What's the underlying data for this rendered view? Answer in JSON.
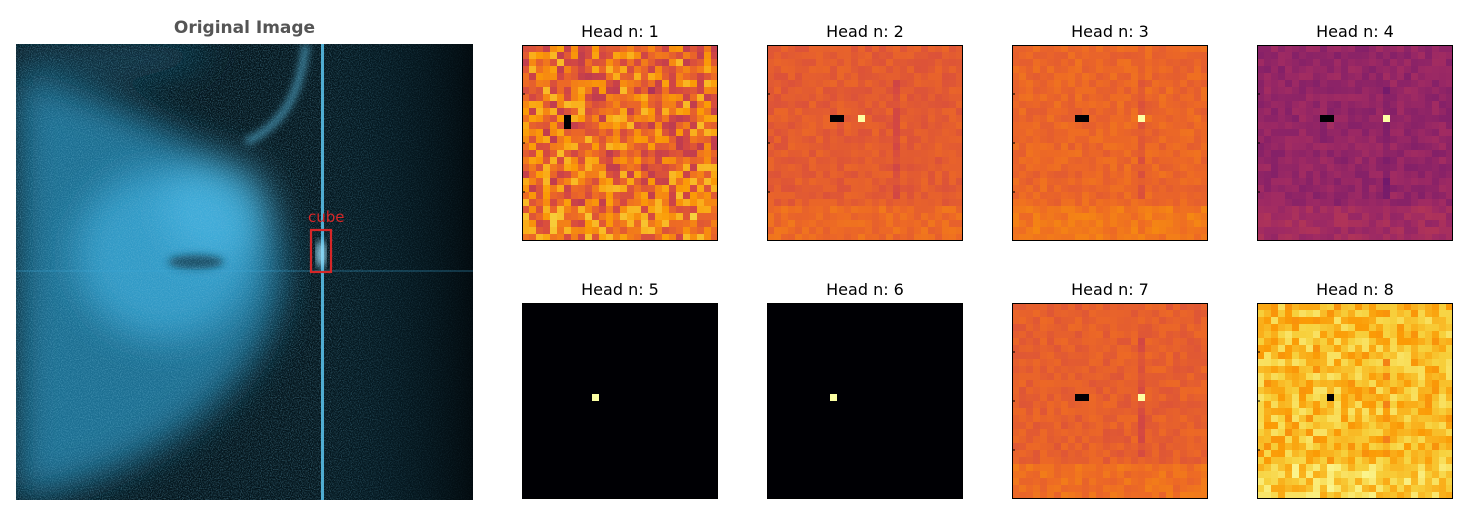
{
  "original": {
    "title": "Original Image",
    "box_label": "cube",
    "box_color": "#d62728",
    "sonar_color": "#3aa8d8",
    "background": "#03141b"
  },
  "chart_data": {
    "type": "heatmap",
    "grid_size": 28,
    "colormap": "inferno",
    "panels": [
      {
        "title": "Head n: 1",
        "base": 0.7,
        "noise": 0.16,
        "seed": 11,
        "bright_spots": [],
        "dark_spots": [
          [
            6,
            10
          ],
          [
            6,
            11
          ]
        ]
      },
      {
        "title": "Head n: 2",
        "base": 0.66,
        "noise": 0.03,
        "seed": 22,
        "bright_spots": [
          [
            13,
            10
          ]
        ],
        "dark_spots": [
          [
            9,
            10
          ],
          [
            10,
            10
          ]
        ]
      },
      {
        "title": "Head n: 3",
        "base": 0.69,
        "noise": 0.03,
        "seed": 33,
        "bright_spots": [
          [
            18,
            10
          ]
        ],
        "dark_spots": [
          [
            9,
            10
          ],
          [
            10,
            10
          ]
        ]
      },
      {
        "title": "Head n: 4",
        "base": 0.42,
        "noise": 0.04,
        "seed": 44,
        "bright_spots": [
          [
            18,
            10
          ]
        ],
        "dark_spots": [
          [
            9,
            10
          ],
          [
            10,
            10
          ]
        ]
      },
      {
        "title": "Head n: 5",
        "base": 0.0,
        "noise": 0.0,
        "seed": 55,
        "bright_spots": [
          [
            10,
            13
          ]
        ],
        "dark_spots": []
      },
      {
        "title": "Head n: 6",
        "base": 0.0,
        "noise": 0.0,
        "seed": 66,
        "bright_spots": [
          [
            9,
            13
          ]
        ],
        "dark_spots": []
      },
      {
        "title": "Head n: 7",
        "base": 0.67,
        "noise": 0.03,
        "seed": 77,
        "bright_spots": [
          [
            18,
            13
          ]
        ],
        "dark_spots": [
          [
            9,
            13
          ],
          [
            10,
            13
          ]
        ]
      },
      {
        "title": "Head n: 8",
        "base": 0.86,
        "noise": 0.08,
        "seed": 88,
        "bright_spots": [],
        "dark_spots": [
          [
            10,
            13
          ]
        ]
      }
    ]
  }
}
